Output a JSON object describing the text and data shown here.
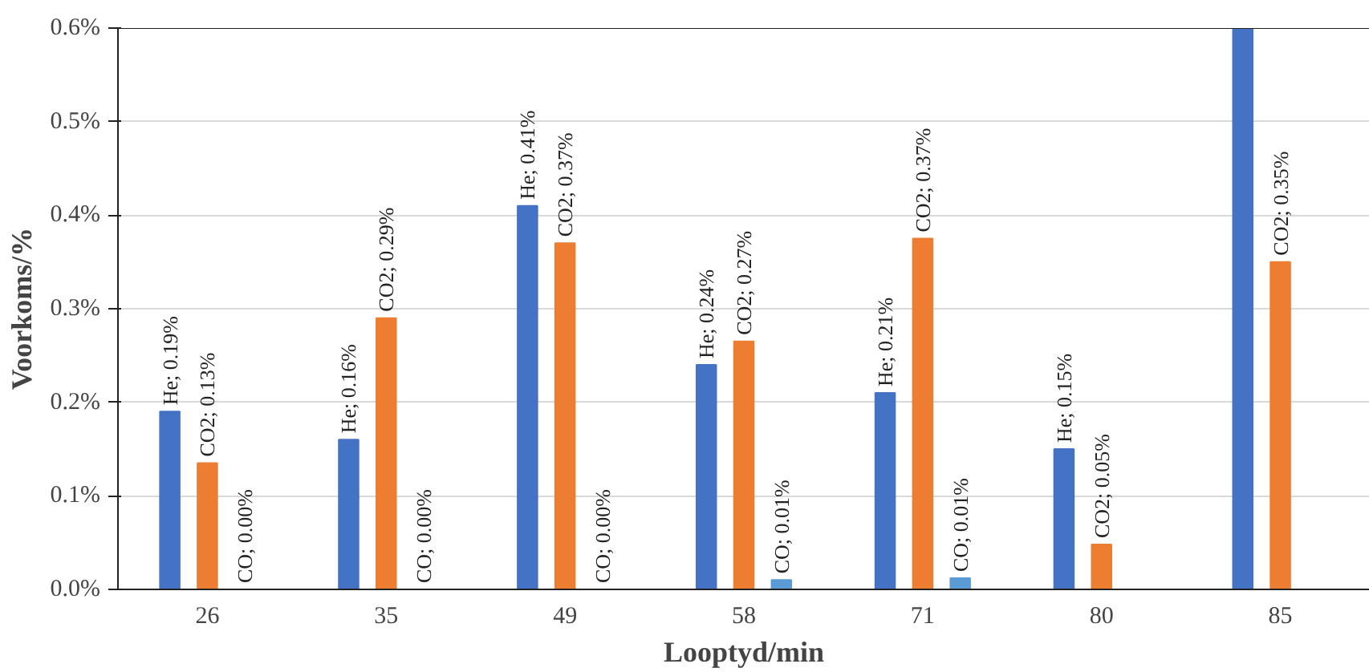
{
  "chart_data": {
    "type": "bar",
    "xlabel": "Looptyd/min",
    "ylabel": "Voorkoms/%",
    "categories": [
      "26",
      "35",
      "49",
      "58",
      "71",
      "80",
      "85"
    ],
    "series": [
      {
        "color": "#4472c4",
        "values": [
          0.19,
          0.16,
          0.41,
          0.24,
          0.21,
          0.15,
          0.6
        ],
        "value_labels": [
          "He; 0.19%",
          "He; 0.16%",
          "He; 0.41%",
          "He; 0.24%",
          "He; 0.21%",
          "He; 0.15%",
          null
        ]
      },
      {
        "color": "#ed7d31",
        "values": [
          0.135,
          0.29,
          0.37,
          0.265,
          0.375,
          0.048,
          0.35
        ],
        "value_labels": [
          "CO2; 0.13%",
          "CO2; 0.29%",
          "CO2; 0.37%",
          "CO2; 0.27%",
          "CO2; 0.37%",
          "CO2; 0.05%",
          "CO2; 0.35%"
        ]
      },
      {
        "color": "#5b9bd5",
        "values": [
          0.0,
          0.0,
          0.0,
          0.01,
          0.012,
          null,
          null
        ],
        "value_labels": [
          "CO; 0.00%",
          "CO; 0.00%",
          "CO; 0.00%",
          "CO; 0.01%",
          "CO; 0.01%",
          null,
          null
        ]
      }
    ],
    "ylim": [
      0,
      0.6
    ],
    "yticks": [
      {
        "value": 0,
        "label": "0.0%"
      },
      {
        "value": 0.1,
        "label": "0.1%"
      },
      {
        "value": 0.2,
        "label": "0.2%"
      },
      {
        "value": 0.3,
        "label": "0.3%"
      },
      {
        "value": 0.4,
        "label": "0.4%"
      },
      {
        "value": 0.5,
        "label": "0.5%"
      },
      {
        "value": 0.6,
        "label": "0.6%"
      }
    ],
    "grid": "y"
  }
}
